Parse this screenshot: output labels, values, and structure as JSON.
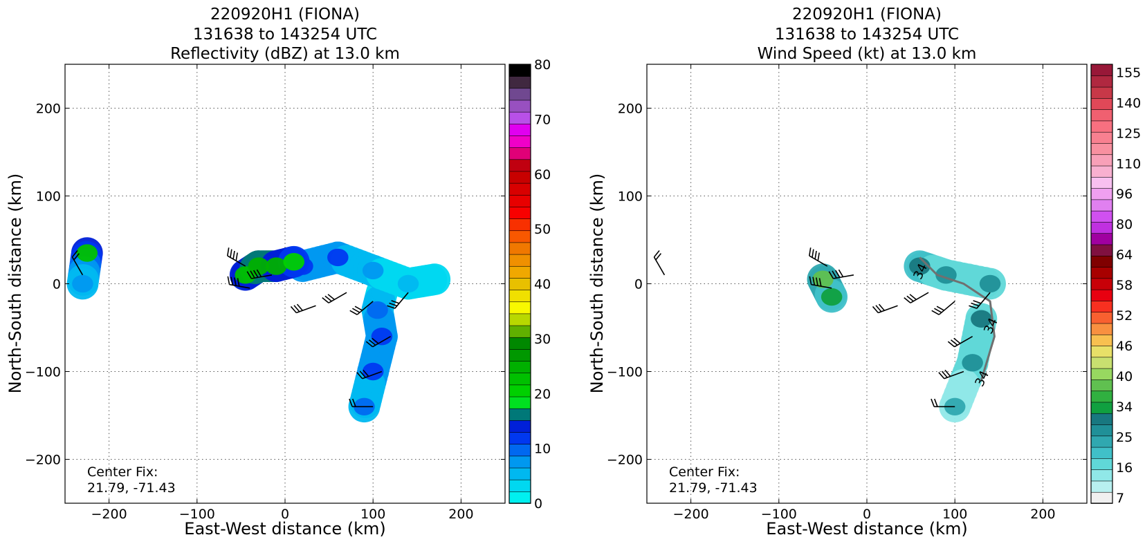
{
  "chart_data": [
    {
      "type": "heatmap",
      "title_lines": [
        "220920H1 (FIONA)",
        "131638 to 143254 UTC",
        "Reflectivity (dBZ) at 13.0 km"
      ],
      "xlabel": "East-West distance (km)",
      "ylabel": "North-South distance (km)",
      "xlim": [
        -250,
        250
      ],
      "ylim": [
        -250,
        250
      ],
      "xticks": [
        -200,
        -100,
        0,
        100,
        200
      ],
      "yticks": [
        -200,
        -100,
        0,
        100,
        200
      ],
      "grid": true,
      "annotation": [
        "Center Fix:",
        "21.79, -71.43"
      ],
      "colorbar": {
        "min": 0,
        "max": 80,
        "tick_values": [
          0,
          10,
          20,
          30,
          40,
          50,
          60,
          70,
          80
        ],
        "tick_labels": [
          "0",
          "10",
          "20",
          "30",
          "40",
          "50",
          "60",
          "70",
          "80"
        ],
        "colors": [
          "#00f0f0",
          "#00d8f0",
          "#00b8f0",
          "#0098f0",
          "#0068f0",
          "#0038f0",
          "#0020d8",
          "#007878",
          "#00e020",
          "#00d000",
          "#00c000",
          "#00b000",
          "#009800",
          "#008800",
          "#60b000",
          "#b8d800",
          "#f8f800",
          "#f0e000",
          "#e8c000",
          "#f0a800",
          "#f09000",
          "#f07800",
          "#f85800",
          "#f83000",
          "#f80000",
          "#e80000",
          "#d80000",
          "#c80000",
          "#c00010",
          "#e00078",
          "#f000c8",
          "#e000f0",
          "#b850e8",
          "#9850c0",
          "#704890",
          "#402840",
          "#000000"
        ]
      },
      "echo_regions": [
        {
          "shape": "southern-band",
          "reflectivity": [
            [
              110,
              -10,
              4
            ],
            [
              105,
              -30,
              8
            ],
            [
              110,
              -60,
              12
            ],
            [
              100,
              -100,
              10
            ],
            [
              90,
              -140,
              8
            ]
          ]
        },
        {
          "shape": "northern-arc",
          "reflectivity": [
            [
              20,
              20,
              12
            ],
            [
              60,
              30,
              10
            ],
            [
              100,
              15,
              6
            ],
            [
              140,
              0,
              4
            ],
            [
              170,
              5,
              3
            ]
          ]
        },
        {
          "shape": "western-core",
          "reflectivity": [
            [
              -45,
              10,
              22
            ],
            [
              -30,
              20,
              25
            ],
            [
              -10,
              20,
              24
            ],
            [
              10,
              25,
              20
            ]
          ]
        },
        {
          "shape": "outlier",
          "reflectivity": [
            [
              -225,
              35,
              22
            ],
            [
              -230,
              0,
              6
            ]
          ]
        }
      ],
      "wind_barbs_kt": [
        {
          "x": -45,
          "y": 20,
          "speed": 45,
          "dir": 300
        },
        {
          "x": -40,
          "y": -5,
          "speed": 45,
          "dir": 280
        },
        {
          "x": -15,
          "y": 10,
          "speed": 40,
          "dir": 260
        },
        {
          "x": 35,
          "y": -25,
          "speed": 35,
          "dir": 250
        },
        {
          "x": 70,
          "y": -10,
          "speed": 30,
          "dir": 240
        },
        {
          "x": 100,
          "y": -20,
          "speed": 30,
          "dir": 230
        },
        {
          "x": 140,
          "y": -10,
          "speed": 30,
          "dir": 220
        },
        {
          "x": 120,
          "y": -60,
          "speed": 30,
          "dir": 240
        },
        {
          "x": 110,
          "y": -100,
          "speed": 30,
          "dir": 250
        },
        {
          "x": 100,
          "y": -140,
          "speed": 25,
          "dir": 270
        },
        {
          "x": -230,
          "y": 10,
          "speed": 20,
          "dir": 330
        }
      ]
    },
    {
      "type": "heatmap",
      "title_lines": [
        "220920H1 (FIONA)",
        "131638 to 143254 UTC",
        "Wind Speed (kt) at 13.0 km"
      ],
      "xlabel": "East-West distance (km)",
      "ylabel": "North-South distance (km)",
      "xlim": [
        -250,
        250
      ],
      "ylim": [
        -250,
        250
      ],
      "xticks": [
        -200,
        -100,
        0,
        100,
        200
      ],
      "yticks": [
        -200,
        -100,
        0,
        100,
        200
      ],
      "grid": true,
      "annotation": [
        "Center Fix:",
        "21.79, -71.43"
      ],
      "contour_label": "34",
      "colorbar": {
        "tick_labels": [
          "7",
          "16",
          "25",
          "34",
          "40",
          "46",
          "52",
          "58",
          "64",
          "80",
          "96",
          "110",
          "125",
          "140",
          "155"
        ],
        "colors": [
          "#f0f0f0",
          "#b8f0f0",
          "#90e8e8",
          "#60d8d8",
          "#40c0c8",
          "#30a8b0",
          "#209098",
          "#187880",
          "#10a040",
          "#30b040",
          "#60c050",
          "#98d860",
          "#c8e070",
          "#e8e068",
          "#f8c050",
          "#f89040",
          "#f86030",
          "#f83020",
          "#e80010",
          "#c80008",
          "#a80000",
          "#800000",
          "#801040",
          "#a000a0",
          "#c030e0",
          "#d050f0",
          "#e080f0",
          "#f0a0f0",
          "#f8c0f0",
          "#f8b0d0",
          "#f8a0b8",
          "#f890a0",
          "#f88090",
          "#f87080",
          "#f06070",
          "#e04858",
          "#c83848",
          "#b02840",
          "#981838"
        ]
      },
      "speed_regions": [
        {
          "shape": "western-arc",
          "speed_kt": [
            [
              -50,
              5,
              44
            ],
            [
              -40,
              -15,
              40
            ]
          ]
        },
        {
          "shape": "northern-arc",
          "speed_kt": [
            [
              60,
              20,
              36
            ],
            [
              90,
              10,
              32
            ],
            [
              140,
              0,
              30
            ]
          ]
        },
        {
          "shape": "southern-band",
          "speed_kt": [
            [
              130,
              -40,
              34
            ],
            [
              120,
              -90,
              30
            ],
            [
              100,
              -140,
              25
            ]
          ]
        }
      ]
    }
  ]
}
